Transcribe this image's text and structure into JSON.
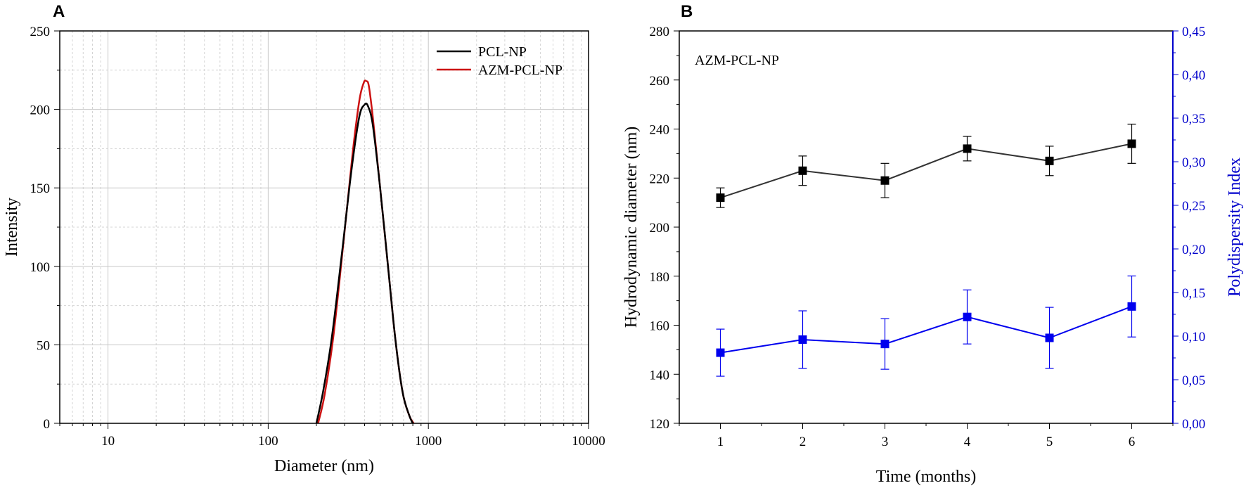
{
  "panels": {
    "a_label": "A",
    "b_label": "B"
  },
  "chart_data": [
    {
      "id": "A",
      "type": "line",
      "xscale": "log",
      "xlim": [
        5,
        10000
      ],
      "ylim": [
        0,
        250
      ],
      "xlabel": "Diameter (nm)",
      "ylabel": "Intensity",
      "xticks": [
        10,
        100,
        1000,
        10000
      ],
      "xtick_labels": [
        "10",
        "100",
        "1000",
        "10000"
      ],
      "yticks": [
        0,
        50,
        100,
        150,
        200,
        250
      ],
      "ytick_labels": [
        "0",
        "50",
        "100",
        "150",
        "200",
        "250"
      ],
      "grid": true,
      "legend_position": "top-right",
      "colors": {
        "PCL-NP": "#000000",
        "AZM-PCL-NP": "#cc1111"
      },
      "series": [
        {
          "name": "PCL-NP",
          "x": [
            200,
            220,
            250,
            290,
            330,
            370,
            400,
            420,
            450,
            500,
            560,
            620,
            690,
            760,
            800
          ],
          "y": [
            0,
            20,
            55,
            110,
            160,
            195,
            203,
            202,
            190,
            150,
            100,
            55,
            20,
            5,
            0
          ]
        },
        {
          "name": "AZM-PCL-NP",
          "x": [
            205,
            225,
            255,
            295,
            335,
            370,
            395,
            410,
            425,
            450,
            500,
            560,
            620,
            690,
            760,
            810
          ],
          "y": [
            0,
            18,
            55,
            115,
            170,
            205,
            217,
            218,
            215,
            195,
            150,
            100,
            55,
            20,
            5,
            0
          ]
        }
      ]
    },
    {
      "id": "B",
      "type": "line",
      "annotation": "AZM-PCL-NP",
      "xlabel": "Time (months)",
      "ylabel": "Hydrodynamic diameter (nm)",
      "y2label": "Polydispersity Index",
      "xlim": [
        0.5,
        6.5
      ],
      "ylim": [
        120,
        280
      ],
      "y2lim": [
        0,
        0.45
      ],
      "xticks": [
        1,
        2,
        3,
        4,
        5,
        6
      ],
      "xtick_labels": [
        "1",
        "2",
        "3",
        "4",
        "5",
        "6"
      ],
      "yticks": [
        120,
        140,
        160,
        180,
        200,
        220,
        240,
        260,
        280
      ],
      "ytick_labels": [
        "120",
        "140",
        "160",
        "180",
        "200",
        "220",
        "240",
        "260",
        "280"
      ],
      "y2ticks": [
        0,
        0.05,
        0.1,
        0.15,
        0.2,
        0.25,
        0.3,
        0.35,
        0.4,
        0.45
      ],
      "y2tick_labels": [
        "0,00",
        "0,05",
        "0,10",
        "0,15",
        "0,20",
        "0,25",
        "0,30",
        "0,35",
        "0,40",
        "0,45"
      ],
      "grid": false,
      "colors": {
        "size": "#333333",
        "pdi": "#0000ee",
        "marker_size": "#000000",
        "axis_right": "#0000cc"
      },
      "series": [
        {
          "name": "Hydrodynamic diameter",
          "axis": "left",
          "x": [
            1,
            2,
            3,
            4,
            5,
            6
          ],
          "y": [
            212,
            223,
            219,
            232,
            227,
            234
          ],
          "err": [
            4,
            6,
            7,
            5,
            6,
            8
          ]
        },
        {
          "name": "Polydispersity Index",
          "axis": "right",
          "x": [
            1,
            2,
            3,
            4,
            5,
            6
          ],
          "y": [
            0.081,
            0.096,
            0.091,
            0.122,
            0.098,
            0.134
          ],
          "err": [
            0.027,
            0.033,
            0.029,
            0.031,
            0.035,
            0.035
          ]
        }
      ]
    }
  ]
}
